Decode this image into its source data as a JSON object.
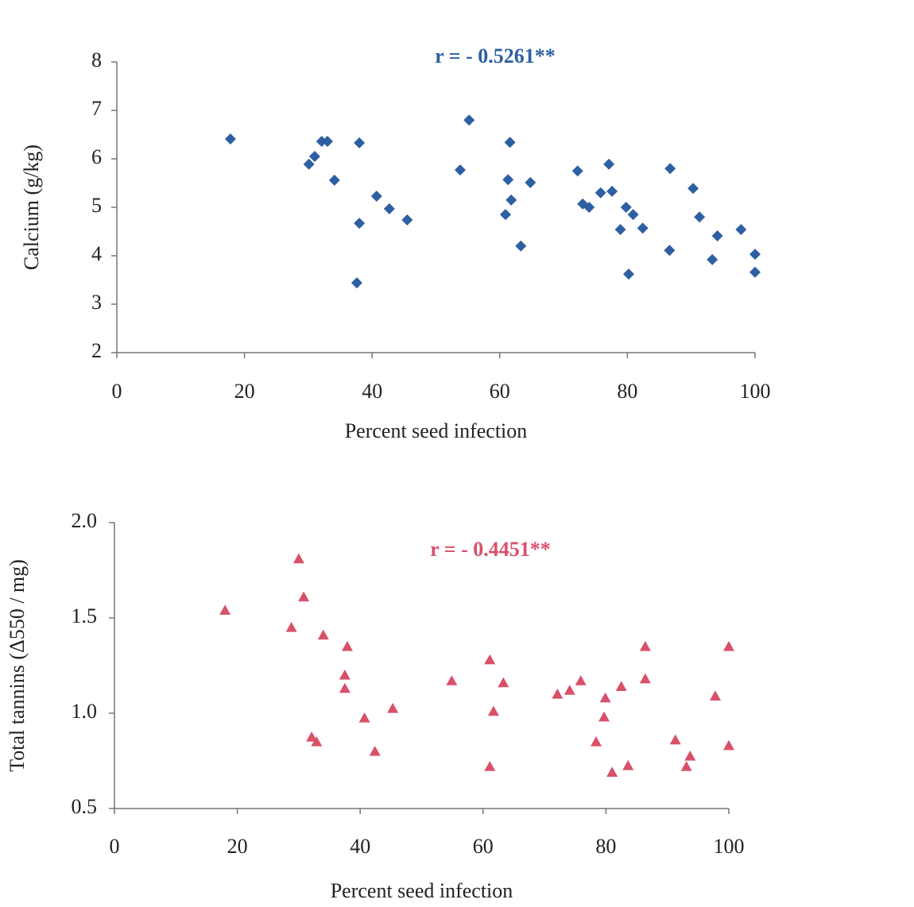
{
  "chart_data": [
    {
      "type": "scatter",
      "annotation": "r = - 0.5261**",
      "annotation_color": "#2e5fa3",
      "x_label": "Percent seed infection",
      "y_label": "Calcium (g/kg)",
      "xlim": [
        0,
        100
      ],
      "xticks": [
        0,
        20,
        40,
        60,
        80,
        100
      ],
      "ylim": [
        2,
        8
      ],
      "yticks": [
        2,
        3,
        4,
        5,
        6,
        7,
        8
      ],
      "marker": "diamond",
      "series": [
        {
          "color": "#2e5fa3",
          "x": [
            17.8,
            30.1,
            31.0,
            32.1,
            33.0,
            34.1,
            38.0,
            38.0,
            37.6,
            40.7,
            42.7,
            45.5,
            53.8,
            55.2,
            61.6,
            61.3,
            61.8,
            60.9,
            64.8,
            63.3,
            72.2,
            73.0,
            74.0,
            75.8,
            77.1,
            77.6,
            78.9,
            79.8,
            80.9,
            82.4,
            80.2,
            86.7,
            86.6,
            90.3,
            91.3,
            93.3,
            94.1,
            97.8,
            100,
            100
          ],
          "values": [
            6.41,
            5.89,
            6.05,
            6.36,
            6.36,
            5.56,
            6.33,
            4.67,
            3.44,
            5.23,
            4.97,
            4.74,
            5.77,
            6.8,
            6.34,
            5.57,
            5.15,
            4.85,
            5.51,
            4.2,
            5.75,
            5.07,
            5.0,
            5.3,
            5.89,
            5.33,
            4.54,
            5.0,
            4.85,
            4.57,
            3.62,
            5.8,
            4.11,
            5.39,
            4.8,
            3.92,
            4.41,
            4.54,
            4.03,
            3.66
          ]
        }
      ]
    },
    {
      "type": "scatter",
      "annotation": "r = - 0.4451**",
      "annotation_color": "#d9506a",
      "x_label": "Percent seed infection",
      "y_label": "Total tannins (Δ550 / mg)",
      "xlim": [
        0,
        100
      ],
      "xticks": [
        0,
        20,
        40,
        60,
        80,
        100
      ],
      "ylim": [
        0.5,
        2
      ],
      "yticks": [
        0.5,
        {
          "value": 1,
          "label": "1.0"
        },
        1.5,
        {
          "value": 2,
          "label": "2.0"
        }
      ],
      "marker": "triangle",
      "series": [
        {
          "color": "#d9506a",
          "x": [
            18.0,
            30.0,
            28.8,
            30.8,
            34.0,
            37.9,
            37.5,
            37.5,
            32.1,
            32.9,
            40.7,
            42.4,
            45.3,
            54.9,
            61.1,
            63.3,
            61.7,
            61.1,
            72.1,
            74.1,
            75.9,
            78.4,
            79.9,
            79.7,
            81.0,
            82.5,
            83.6,
            86.4,
            86.4,
            91.3,
            93.1,
            93.7,
            97.8,
            100,
            100
          ],
          "values": [
            1.54,
            1.81,
            1.45,
            1.61,
            1.41,
            1.35,
            1.2,
            1.13,
            0.875,
            0.85,
            0.975,
            0.8,
            1.025,
            1.17,
            1.28,
            1.16,
            1.01,
            0.72,
            1.1,
            1.12,
            1.17,
            0.85,
            1.08,
            0.98,
            0.69,
            1.14,
            0.725,
            1.35,
            1.18,
            0.86,
            0.72,
            0.775,
            1.09,
            0.83,
            1.35
          ]
        }
      ]
    }
  ]
}
